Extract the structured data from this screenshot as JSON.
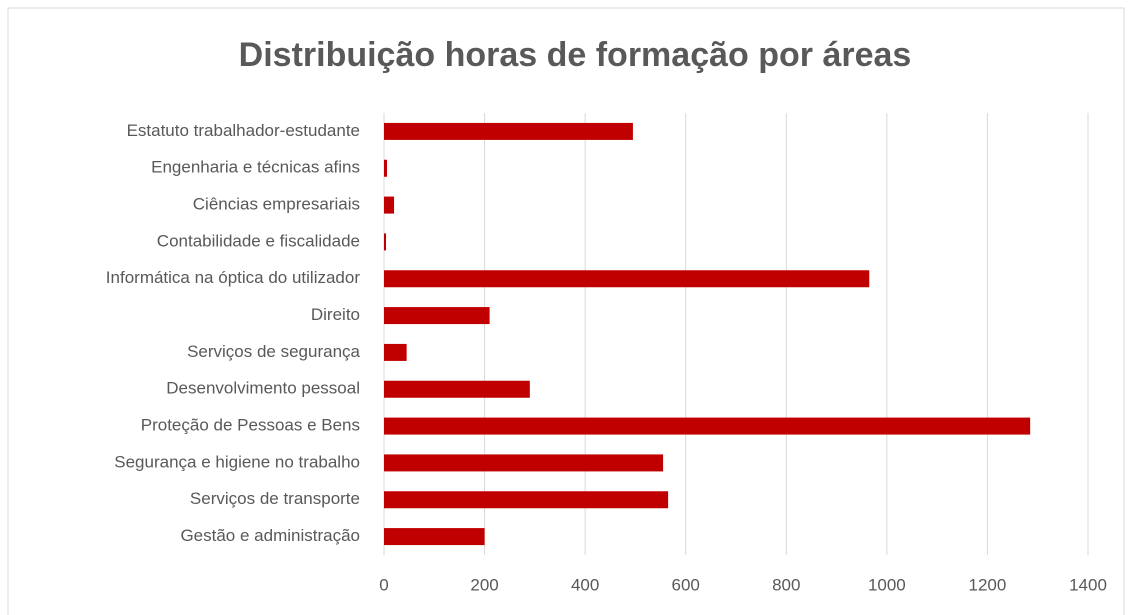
{
  "chart_data": {
    "type": "bar",
    "orientation": "horizontal",
    "title": "Distribuição horas de formação por áreas",
    "categories": [
      "Estatuto trabalhador-estudante",
      "Engenharia e técnicas afins",
      "Ciências empresariais",
      "Contabilidade e fiscalidade",
      "Informática na óptica do utilizador",
      "Direito",
      "Serviços de segurança",
      "Desenvolvimento pessoal",
      "Proteção de Pessoas e Bens",
      "Segurança e higiene no trabalho",
      "Serviços de  transporte",
      "Gestão e administração"
    ],
    "values": [
      495,
      6,
      20,
      4,
      965,
      210,
      45,
      290,
      1285,
      555,
      565,
      200
    ],
    "color": "#c00000",
    "xlim": [
      0,
      1400
    ],
    "xticks": [
      0,
      200,
      400,
      600,
      800,
      1000,
      1200,
      1400
    ],
    "grid": true
  }
}
